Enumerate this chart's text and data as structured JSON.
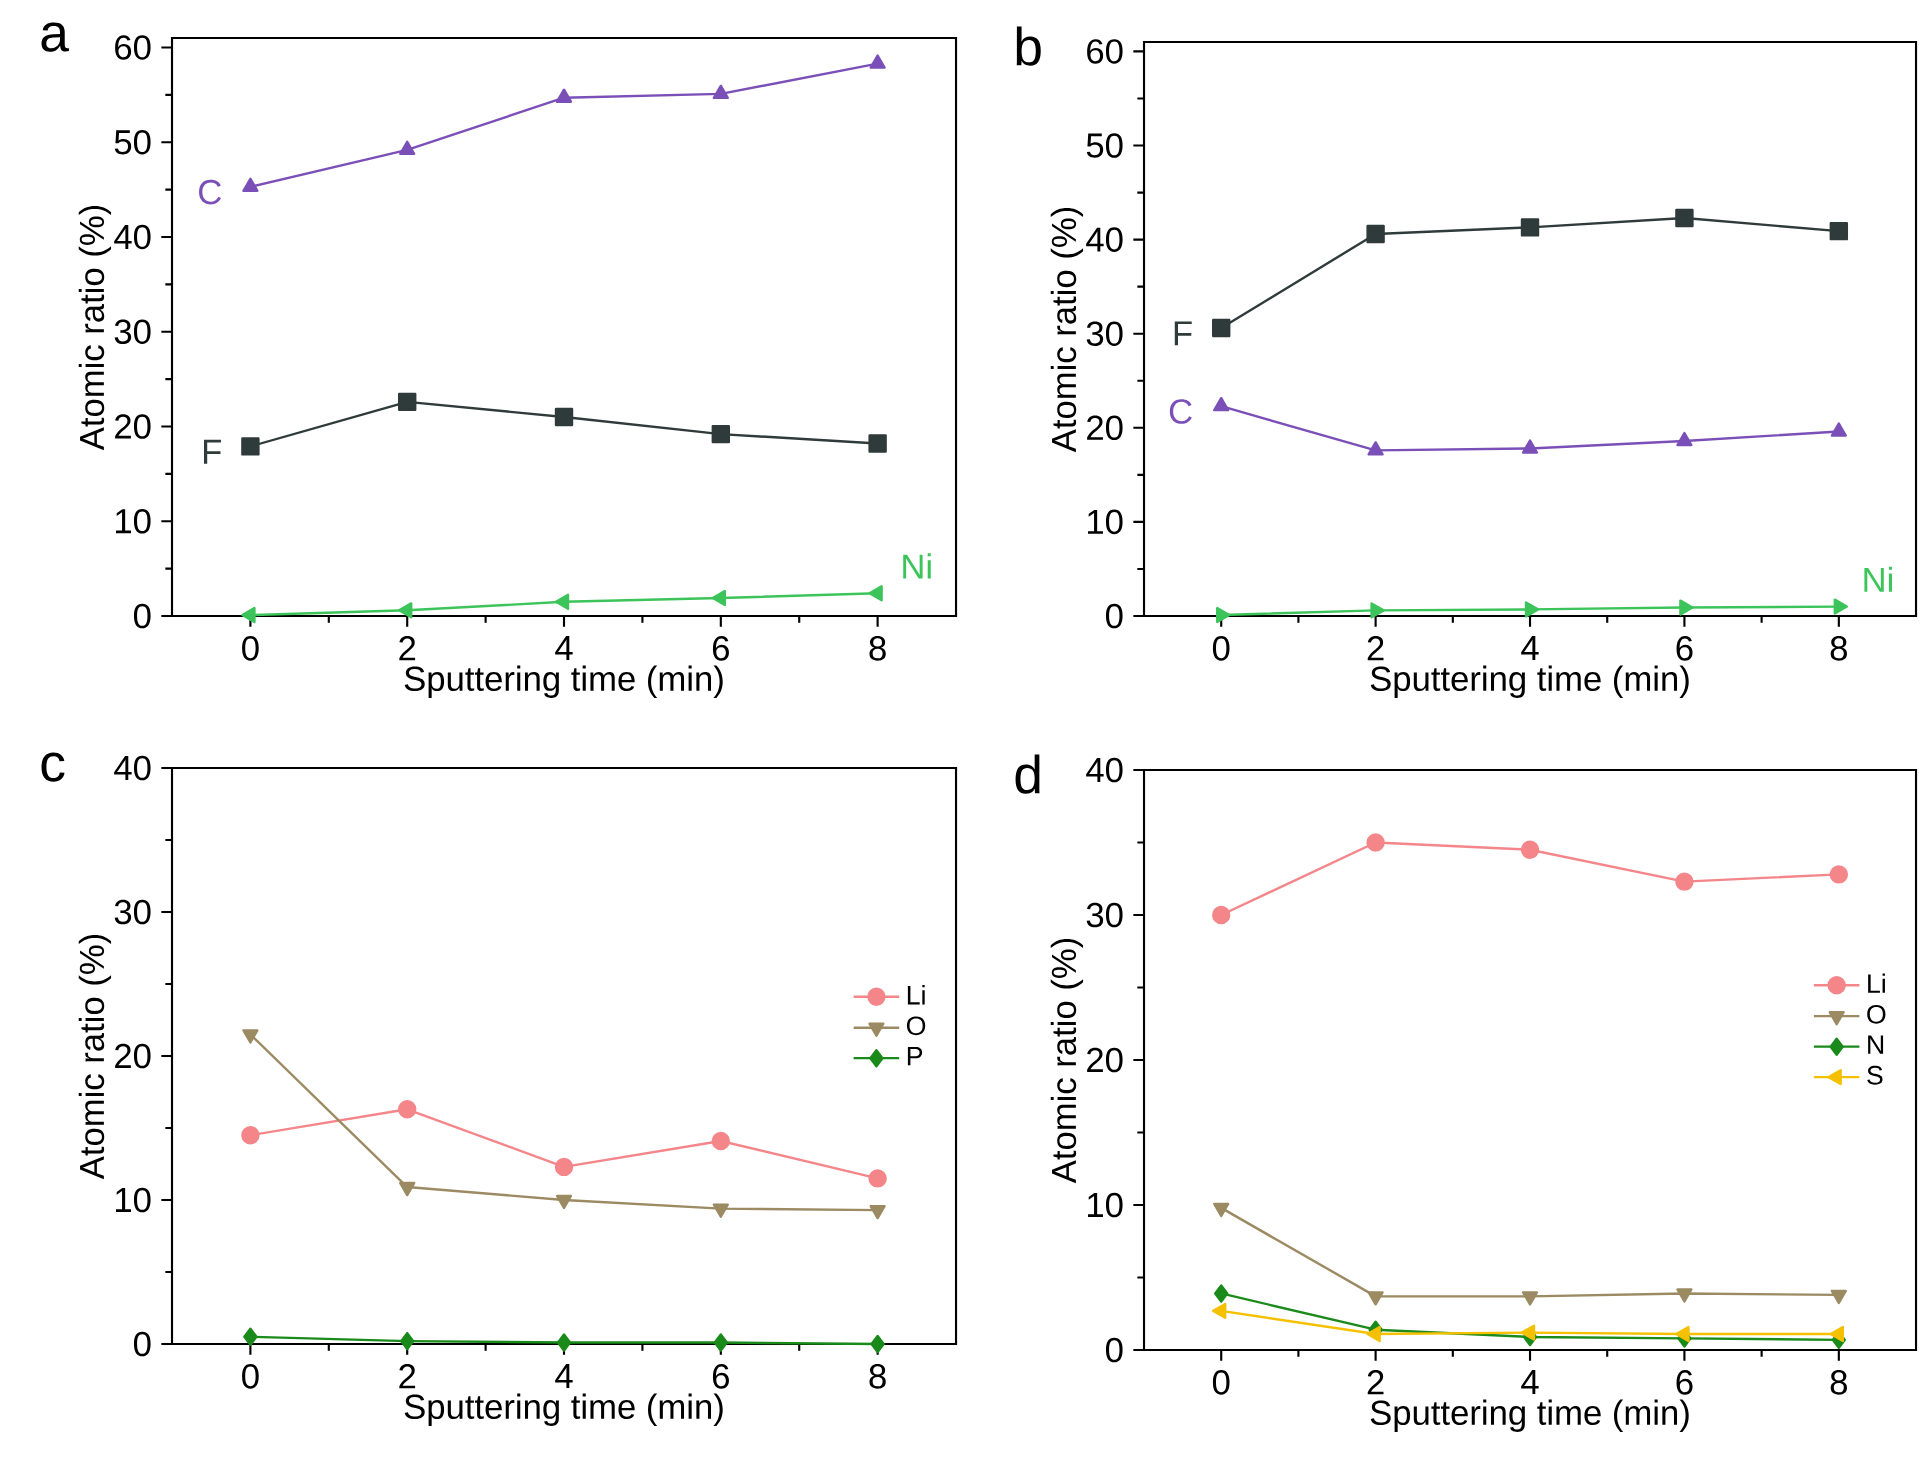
{
  "chart_data": [
    {
      "type": "line",
      "title": "a",
      "xlabel": "Sputtering time (min)",
      "ylabel": "Atomic ratio (%)",
      "x": [
        0,
        2,
        4,
        6,
        8
      ],
      "xlim": [
        -1,
        9
      ],
      "ylim": [
        0,
        61
      ],
      "xticks": [
        0,
        2,
        4,
        6,
        8
      ],
      "yticks": [
        0,
        10,
        20,
        30,
        40,
        50,
        60
      ],
      "legend": false,
      "grid": false,
      "series": [
        {
          "name": "C",
          "color": "#7b4fb8",
          "marker": "triangle",
          "values": [
            45.3,
            49.2,
            54.7,
            55.1,
            58.3
          ]
        },
        {
          "name": "F",
          "color": "#2f3a3a",
          "marker": "square",
          "values": [
            17.9,
            22.6,
            21.0,
            19.2,
            18.2
          ]
        },
        {
          "name": "Ni",
          "color": "#3cc45a",
          "marker": "triangle-left",
          "values": [
            0.1,
            0.6,
            1.5,
            1.9,
            2.4
          ]
        }
      ]
    },
    {
      "type": "line",
      "title": "b",
      "xlabel": "Sputtering time (min)",
      "ylabel": "Atomic ratio (%)",
      "x": [
        0,
        2,
        4,
        6,
        8
      ],
      "xlim": [
        -1,
        9
      ],
      "ylim": [
        0,
        61
      ],
      "xticks": [
        0,
        2,
        4,
        6,
        8
      ],
      "yticks": [
        0,
        10,
        20,
        30,
        40,
        50,
        60
      ],
      "legend": false,
      "grid": false,
      "series": [
        {
          "name": "F",
          "color": "#2f3a3a",
          "marker": "square",
          "values": [
            30.6,
            40.6,
            41.3,
            42.3,
            40.9
          ]
        },
        {
          "name": "C",
          "color": "#7b4fb8",
          "marker": "triangle",
          "values": [
            22.3,
            17.6,
            17.8,
            18.6,
            19.6
          ]
        },
        {
          "name": "Ni",
          "color": "#3cc45a",
          "marker": "triangle-right",
          "values": [
            0.1,
            0.6,
            0.7,
            0.9,
            1.0
          ]
        }
      ]
    },
    {
      "type": "line",
      "title": "c",
      "xlabel": "Sputtering time (min)",
      "ylabel": "Atomic ratio (%)",
      "x": [
        0,
        2,
        4,
        6,
        8
      ],
      "xlim": [
        -1,
        9
      ],
      "ylim": [
        0,
        40
      ],
      "xticks": [
        0,
        2,
        4,
        6,
        8
      ],
      "yticks": [
        0,
        10,
        20,
        30,
        40
      ],
      "legend": "right",
      "grid": false,
      "series": [
        {
          "name": "Li",
          "color": "#f4868a",
          "marker": "circle",
          "values": [
            14.5,
            16.3,
            12.3,
            14.1,
            11.5
          ]
        },
        {
          "name": "O",
          "color": "#9b8a62",
          "marker": "triangle-down",
          "values": [
            21.5,
            10.9,
            10.0,
            9.4,
            9.3
          ]
        },
        {
          "name": "P",
          "color": "#1a8a1a",
          "marker": "diamond",
          "values": [
            0.5,
            0.2,
            0.1,
            0.1,
            0.0
          ]
        }
      ]
    },
    {
      "type": "line",
      "title": "d",
      "xlabel": "Sputtering time (min)",
      "ylabel": "Atomic ratio (%)",
      "x": [
        0,
        2,
        4,
        6,
        8
      ],
      "xlim": [
        -1,
        9
      ],
      "ylim": [
        0,
        40
      ],
      "xticks": [
        0,
        2,
        4,
        6,
        8
      ],
      "yticks": [
        0,
        10,
        20,
        30,
        40
      ],
      "legend": "right",
      "grid": false,
      "series": [
        {
          "name": "Li",
          "color": "#f4868a",
          "marker": "circle",
          "values": [
            30.0,
            35.0,
            34.5,
            32.3,
            32.8
          ]
        },
        {
          "name": "O",
          "color": "#9b8a62",
          "marker": "triangle-down",
          "values": [
            9.8,
            3.7,
            3.7,
            3.9,
            3.8
          ]
        },
        {
          "name": "N",
          "color": "#1a8a1a",
          "marker": "diamond",
          "values": [
            3.9,
            1.4,
            0.9,
            0.8,
            0.7
          ]
        },
        {
          "name": "S",
          "color": "#f5c000",
          "marker": "triangle-left",
          "values": [
            2.7,
            1.1,
            1.2,
            1.1,
            1.1
          ]
        }
      ]
    }
  ]
}
